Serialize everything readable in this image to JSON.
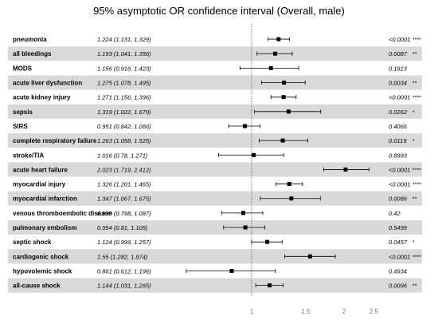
{
  "chart_data": {
    "type": "forest",
    "title": "95% asymptotic OR confidence interval (Overall, male)",
    "x_scale": "log",
    "xlim": [
      0.71,
      2.7
    ],
    "reference_line": 1,
    "x_ticks": [
      1,
      1.5,
      2,
      2.5
    ],
    "x_tick_labels": [
      "1",
      "1.5",
      "2",
      "2.5"
    ],
    "row_colors": {
      "shaded": "#d9d9d9",
      "plain": "#ffffff"
    },
    "rows": [
      {
        "label": "pneumonia",
        "or_text": "1.224 (1.131, 1.329)",
        "or": 1.224,
        "lo": 1.131,
        "hi": 1.329,
        "p": "<0.0001",
        "stars": "****",
        "shaded": false
      },
      {
        "label": "all bleedings",
        "or_text": "1.193 (1.041, 1.356)",
        "or": 1.193,
        "lo": 1.041,
        "hi": 1.356,
        "p": "0.0087",
        "stars": "**",
        "shaded": true
      },
      {
        "label": "MODS",
        "or_text": "1.156 (0.916, 1.423)",
        "or": 1.156,
        "lo": 0.916,
        "hi": 1.423,
        "p": "0.1913",
        "stars": "",
        "shaded": false
      },
      {
        "label": "acute liver dysfunction",
        "or_text": "1.275 (1.078, 1.495)",
        "or": 1.275,
        "lo": 1.078,
        "hi": 1.495,
        "p": "0.0034",
        "stars": "**",
        "shaded": true
      },
      {
        "label": "acute kidney injury",
        "or_text": "1.271 (1.156, 1.396)",
        "or": 1.271,
        "lo": 1.156,
        "hi": 1.396,
        "p": "<0.0001",
        "stars": "****",
        "shaded": false
      },
      {
        "label": "sepsis",
        "or_text": "1.319 (1.022, 1.679)",
        "or": 1.319,
        "lo": 1.022,
        "hi": 1.679,
        "p": "0.0262",
        "stars": "*",
        "shaded": true
      },
      {
        "label": "SIRS",
        "or_text": "0.951 (0.842, 1.066)",
        "or": 0.951,
        "lo": 0.842,
        "hi": 1.066,
        "p": "0.4066",
        "stars": "",
        "shaded": false
      },
      {
        "label": "complete respiratory failure",
        "or_text": "1.263 (1.058, 1.525)",
        "or": 1.263,
        "lo": 1.058,
        "hi": 1.525,
        "p": "0.0119",
        "stars": "*",
        "shaded": true
      },
      {
        "label": "stroke/TIA",
        "or_text": "1.016 (0.78, 1.271)",
        "or": 1.016,
        "lo": 0.78,
        "hi": 1.271,
        "p": "0.8993",
        "stars": "",
        "shaded": false
      },
      {
        "label": "acute heart failure",
        "or_text": "2.023 (1.719, 2.412)",
        "or": 2.023,
        "lo": 1.719,
        "hi": 2.412,
        "p": "<0.0001",
        "stars": "****",
        "shaded": true
      },
      {
        "label": "myocardial injury",
        "or_text": "1.326 (1.201, 1.465)",
        "or": 1.326,
        "lo": 1.201,
        "hi": 1.465,
        "p": "<0.0001",
        "stars": "****",
        "shaded": false
      },
      {
        "label": "myocardial infarction",
        "or_text": "1.347 (1.067, 1.675)",
        "or": 1.347,
        "lo": 1.067,
        "hi": 1.675,
        "p": "0.0086",
        "stars": "**",
        "shaded": true
      },
      {
        "label": "venous thromboembolic disease",
        "or_text": "0.939 (0.798, 1.087)",
        "or": 0.939,
        "lo": 0.798,
        "hi": 1.087,
        "p": "0.42",
        "stars": "",
        "shaded": false
      },
      {
        "label": "pulmonary embolism",
        "or_text": "0.954 (0.81, 1.105)",
        "or": 0.954,
        "lo": 0.81,
        "hi": 1.105,
        "p": "0.5499",
        "stars": "",
        "shaded": true
      },
      {
        "label": "septic shock",
        "or_text": "1.124 (0.999, 1.257)",
        "or": 1.124,
        "lo": 0.999,
        "hi": 1.257,
        "p": "0.0457",
        "stars": "*",
        "shaded": false
      },
      {
        "label": "cardiogenic shock",
        "or_text": "1.55 (1.282, 1.874)",
        "or": 1.55,
        "lo": 1.282,
        "hi": 1.874,
        "p": "<0.0001",
        "stars": "****",
        "shaded": true
      },
      {
        "label": "hypovolemic shock",
        "or_text": "0.861 (0.612, 1.196)",
        "or": 0.861,
        "lo": 0.612,
        "hi": 1.196,
        "p": "0.4934",
        "stars": "",
        "shaded": false
      },
      {
        "label": "all-cause shock",
        "or_text": "1.144 (1.031, 1.265)",
        "or": 1.144,
        "lo": 1.031,
        "hi": 1.265,
        "p": "0.0096",
        "stars": "**",
        "shaded": true
      }
    ]
  }
}
